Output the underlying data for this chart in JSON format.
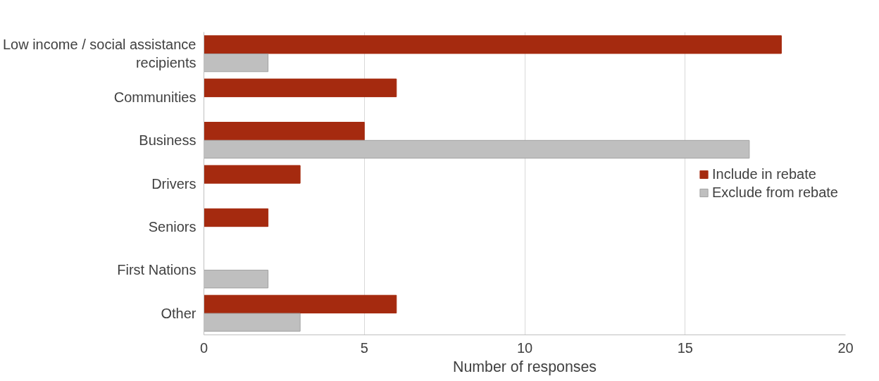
{
  "chart_data": {
    "type": "bar",
    "orientation": "horizontal",
    "xlabel": "Number of responses",
    "categories": [
      "Low income / social assistance recipients",
      "Communities",
      "Business",
      "Drivers",
      "Seniors",
      "First Nations",
      "Other"
    ],
    "series": [
      {
        "name": "Include in rebate",
        "color": "#a52a0f",
        "values": [
          18,
          6,
          5,
          3,
          2,
          null,
          6
        ]
      },
      {
        "name": "Exclude from rebate",
        "color": "#bfbfbf",
        "values": [
          2,
          null,
          17,
          null,
          null,
          2,
          3
        ]
      }
    ],
    "xlim": [
      0,
      20
    ],
    "xticks": [
      0,
      5,
      10,
      15,
      20
    ],
    "grid": "x",
    "legend": "right"
  }
}
